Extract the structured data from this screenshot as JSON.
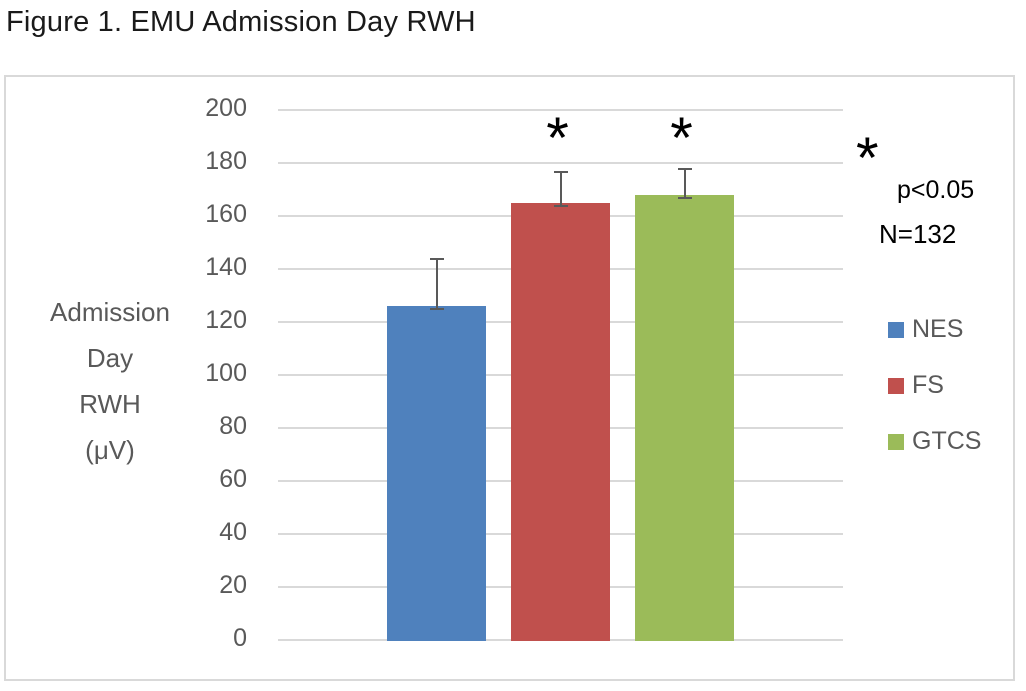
{
  "figure_title": "Figure 1. EMU Admission Day RWH",
  "chart_data": {
    "type": "bar",
    "categories": [
      "NES",
      "FS",
      "GTCS"
    ],
    "values": [
      126,
      165,
      168
    ],
    "error_upper": [
      144,
      177,
      178
    ],
    "significant": [
      false,
      true,
      true
    ],
    "series_colors": [
      "#4F81BD",
      "#C0504D",
      "#9BBB59"
    ],
    "ylabel_lines": [
      "Admission",
      "Day",
      "RWH",
      "(μV)"
    ],
    "yticks": [
      0,
      20,
      40,
      60,
      80,
      100,
      120,
      140,
      160,
      180,
      200
    ],
    "ylim": [
      0,
      200
    ],
    "grid": true,
    "legend_position": "right",
    "legend": [
      "NES",
      "FS",
      "GTCS"
    ],
    "annotations": {
      "sig_marker": "*",
      "sig_note": "p<0.05",
      "sample_size": "N=132"
    }
  },
  "colors": {
    "grid": "#D9D9D9",
    "chart_border": "#D9D9D9",
    "axis_text": "#595959",
    "error_bar": "#595959",
    "title_text": "#1A1A1A",
    "annotation_text": "#000000"
  }
}
